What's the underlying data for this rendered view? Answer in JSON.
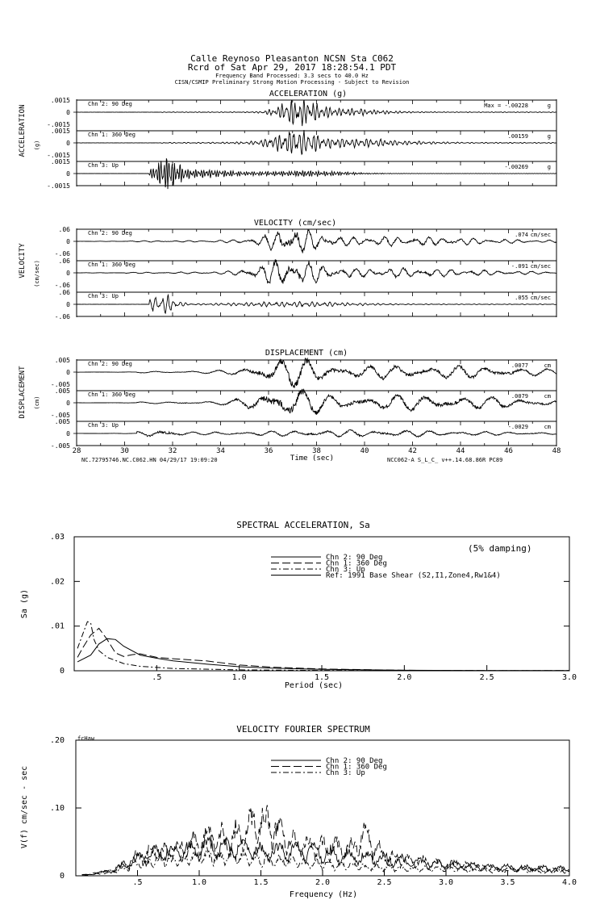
{
  "header": {
    "line1": "Calle Reynoso Pleasanton     NCSN Sta C062",
    "line2": "Rcrd of Sat Apr 29, 2017 18:28:54.1 PDT",
    "line3": "Frequency Band Processed: 3.3 secs to 40.0 Hz",
    "line4": "CISN/CSMIP Preliminary Strong Motion Processing - Subject to Revision"
  },
  "time_axis": {
    "ticks": [
      "28",
      "30",
      "32",
      "34",
      "36",
      "38",
      "40",
      "42",
      "44",
      "46",
      "48"
    ],
    "xlabel": "Time (sec)",
    "left_footer": "NC.72795746.NC.C062.HN 04/29/17 19:09:20",
    "right_footer": "NCC062-A  S_L_C_  v++.14.68.86R PC89"
  },
  "panels": [
    {
      "title": "ACCELERATION (g)",
      "side_label": "ACCELERATION",
      "unit_label": "(g)",
      "unit": "g",
      "traces": [
        {
          "channel": "Chn 2: 90 Deg",
          "ticks": [
            ".0015",
            "0",
            "-.0015"
          ],
          "max_label": "Max =",
          "max": "-.00228"
        },
        {
          "channel": "Chn 1: 360 Deg",
          "ticks": [
            ".0015",
            "0",
            "-.0015"
          ],
          "max_label": "",
          "max": ".00159"
        },
        {
          "channel": "Chn 3: Up",
          "ticks": [
            ".0015",
            "0",
            "-.0015"
          ],
          "max_label": "",
          "max": "-.00269"
        }
      ]
    },
    {
      "title": "VELOCITY (cm/sec)",
      "side_label": "VELOCITY",
      "unit_label": "(cm/sec)",
      "unit": "cm/sec",
      "traces": [
        {
          "channel": "Chn 2: 90 Deg",
          "ticks": [
            ".06",
            "0",
            "-.06"
          ],
          "max_label": "",
          "max": ".074"
        },
        {
          "channel": "Chn 1: 360 Deg",
          "ticks": [
            ".06",
            "0",
            "-.06"
          ],
          "max_label": "",
          "max": "-.091"
        },
        {
          "channel": "Chn 3: Up",
          "ticks": [
            ".06",
            "0",
            "-.06"
          ],
          "max_label": "",
          "max": ".055"
        }
      ]
    },
    {
      "title": "DISPLACEMENT (cm)",
      "side_label": "DISPLACEMENT",
      "unit_label": "(cm)",
      "unit": "cm",
      "traces": [
        {
          "channel": "Chn 2: 90 Deg",
          "ticks": [
            ".005",
            "0",
            "-.005"
          ],
          "max_label": "",
          "max": ".0077"
        },
        {
          "channel": "Chn 1: 360 Deg",
          "ticks": [
            ".005",
            "0",
            "-.005"
          ],
          "max_label": "",
          "max": ".0079"
        },
        {
          "channel": "Chn 3: Up",
          "ticks": [
            ".005",
            "0",
            "-.005"
          ],
          "max_label": "",
          "max": "-.0029"
        }
      ]
    }
  ],
  "spectral": {
    "title": "SPECTRAL ACCELERATION, Sa",
    "damping": "(5% damping)",
    "ylabel": "Sa (g)",
    "xlabel": "Period (sec)",
    "yticks": [
      ".03",
      ".02",
      ".01",
      "0"
    ],
    "xticks": [
      ".5",
      "1.0",
      "1.5",
      "2.0",
      "2.5",
      "3.0"
    ],
    "legend": [
      "Chn 2: 90 Deg",
      "Chn 1: 360 Deg",
      "Chn 3: Up",
      "Ref: 1991 Base Shear (S2,I1,Zone4,Rw1&4)"
    ]
  },
  "fourier": {
    "title": "VELOCITY FOURIER SPECTRUM",
    "tag": "fcHaw",
    "ylabel": "V(f)   cm/sec - sec",
    "xlabel": "Frequency (Hz)",
    "yticks": [
      ".20",
      ".10",
      "0"
    ],
    "xticks": [
      ".5",
      "1.0",
      "1.5",
      "2.0",
      "2.5",
      "3.0",
      "3.5",
      "4.0"
    ],
    "legend": [
      "Chn 2: 90 Deg",
      "Chn 1: 360 Deg",
      "Chn 3: Up"
    ]
  },
  "chart_data": [
    {
      "type": "line",
      "title": "ACCELERATION (g)",
      "xlabel": "Time (sec)",
      "xlim": [
        28,
        48
      ],
      "series": [
        {
          "name": "Chn 2: 90 Deg",
          "peak": -0.00228,
          "ylim": [
            -0.0015,
            0.0015
          ]
        },
        {
          "name": "Chn 1: 360 Deg",
          "peak": 0.00159,
          "ylim": [
            -0.0015,
            0.0015
          ]
        },
        {
          "name": "Chn 3: Up",
          "peak": -0.00269,
          "ylim": [
            -0.0015,
            0.0015
          ]
        }
      ]
    },
    {
      "type": "line",
      "title": "VELOCITY (cm/sec)",
      "xlabel": "Time (sec)",
      "xlim": [
        28,
        48
      ],
      "series": [
        {
          "name": "Chn 2: 90 Deg",
          "peak": 0.074,
          "ylim": [
            -0.06,
            0.06
          ]
        },
        {
          "name": "Chn 1: 360 Deg",
          "peak": -0.091,
          "ylim": [
            -0.06,
            0.06
          ]
        },
        {
          "name": "Chn 3: Up",
          "peak": 0.055,
          "ylim": [
            -0.06,
            0.06
          ]
        }
      ]
    },
    {
      "type": "line",
      "title": "DISPLACEMENT (cm)",
      "xlabel": "Time (sec)",
      "xlim": [
        28,
        48
      ],
      "series": [
        {
          "name": "Chn 2: 90 Deg",
          "peak": 0.0077,
          "ylim": [
            -0.005,
            0.005
          ]
        },
        {
          "name": "Chn 1: 360 Deg",
          "peak": 0.0079,
          "ylim": [
            -0.005,
            0.005
          ]
        },
        {
          "name": "Chn 3: Up",
          "peak": -0.0029,
          "ylim": [
            -0.005,
            0.005
          ]
        }
      ]
    },
    {
      "type": "line",
      "title": "SPECTRAL ACCELERATION, Sa",
      "xlabel": "Period (sec)",
      "ylabel": "Sa (g)",
      "xlim": [
        0,
        3.0
      ],
      "ylim": [
        0,
        0.03
      ],
      "series": [
        {
          "name": "Chn 2: 90 Deg",
          "x": [
            0.02,
            0.1,
            0.15,
            0.2,
            0.25,
            0.3,
            0.4,
            0.5,
            0.6,
            0.8,
            1.0,
            1.2,
            1.5,
            2.0,
            2.5,
            3.0
          ],
          "y": [
            0.002,
            0.0035,
            0.006,
            0.0072,
            0.007,
            0.0055,
            0.0035,
            0.0028,
            0.0022,
            0.0015,
            0.0009,
            0.0006,
            0.0003,
            0.0001,
            5e-05,
            3e-05
          ]
        },
        {
          "name": "Chn 1: 360 Deg",
          "x": [
            0.02,
            0.05,
            0.1,
            0.15,
            0.2,
            0.25,
            0.3,
            0.35,
            0.4,
            0.5,
            0.6,
            0.8,
            1.0,
            1.2,
            1.5,
            2.0,
            2.5,
            3.0
          ],
          "y": [
            0.003,
            0.005,
            0.008,
            0.0095,
            0.007,
            0.004,
            0.0032,
            0.0036,
            0.0038,
            0.003,
            0.0027,
            0.0022,
            0.0013,
            0.0008,
            0.0004,
            0.0001,
            5e-05,
            3e-05
          ]
        },
        {
          "name": "Chn 3: Up",
          "x": [
            0.02,
            0.05,
            0.08,
            0.1,
            0.12,
            0.15,
            0.2,
            0.3,
            0.4,
            0.6,
            1.0,
            1.5,
            2.0,
            3.0
          ],
          "y": [
            0.005,
            0.008,
            0.011,
            0.0107,
            0.007,
            0.0045,
            0.003,
            0.0016,
            0.001,
            0.0005,
            0.0002,
            8e-05,
            3e-05,
            1e-05
          ]
        },
        {
          "name": "Ref: 1991 Base Shear (S2,I1,Zone4,Rw1&4)",
          "x": [
            0,
            3.0
          ],
          "y": [
            0,
            0
          ]
        }
      ]
    },
    {
      "type": "line",
      "title": "VELOCITY FOURIER SPECTRUM",
      "xlabel": "Frequency (Hz)",
      "ylabel": "V(f)   cm/sec - sec",
      "xlim": [
        0,
        4.0
      ],
      "ylim": [
        0,
        0.2
      ],
      "series": [
        {
          "name": "Chn 2: 90 Deg",
          "x": [
            0.1,
            0.3,
            0.5,
            0.75,
            1.0,
            1.25,
            1.5,
            1.75,
            2.0,
            2.25,
            2.5,
            3.0,
            3.5,
            4.0
          ],
          "y": [
            0.002,
            0.01,
            0.03,
            0.045,
            0.05,
            0.05,
            0.045,
            0.045,
            0.04,
            0.035,
            0.03,
            0.02,
            0.015,
            0.012
          ]
        },
        {
          "name": "Chn 1: 360 Deg",
          "x": [
            0.1,
            0.3,
            0.5,
            0.75,
            1.0,
            1.1,
            1.25,
            1.5,
            1.75,
            2.0,
            2.25,
            2.35,
            2.5,
            3.0,
            3.5,
            4.0
          ],
          "y": [
            0.002,
            0.01,
            0.035,
            0.045,
            0.06,
            0.075,
            0.065,
            0.103,
            0.06,
            0.05,
            0.05,
            0.073,
            0.035,
            0.02,
            0.012,
            0.01
          ]
        },
        {
          "name": "Chn 3: Up",
          "x": [
            0.1,
            0.3,
            0.5,
            0.75,
            1.0,
            1.25,
            1.5,
            1.75,
            2.0,
            2.5,
            3.0,
            3.5,
            4.0
          ],
          "y": [
            0.002,
            0.008,
            0.02,
            0.03,
            0.035,
            0.035,
            0.03,
            0.025,
            0.02,
            0.015,
            0.012,
            0.01,
            0.008
          ]
        }
      ]
    }
  ]
}
